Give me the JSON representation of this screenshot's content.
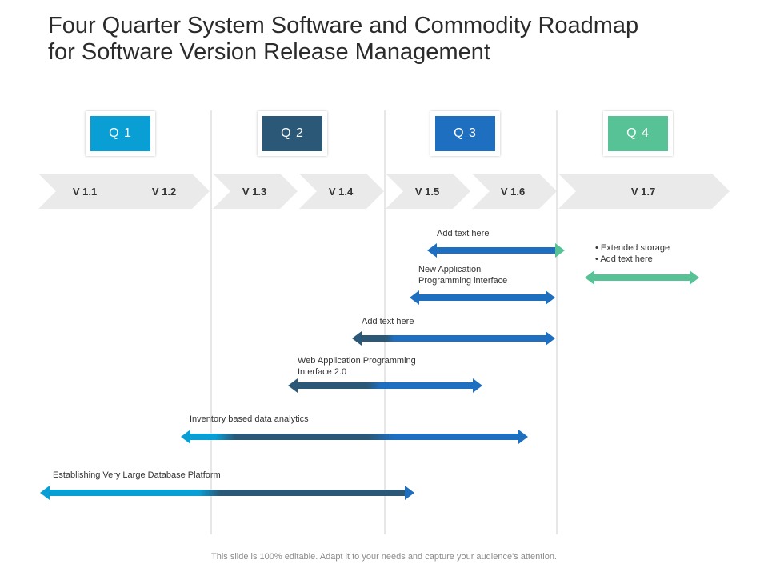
{
  "title": {
    "line1": "Four Quarter System Software and Commodity Roadmap",
    "line2": "for Software Version Release Management"
  },
  "quarters": [
    {
      "label": "Q 1",
      "color": "#0a9fd4"
    },
    {
      "label": "Q 2",
      "color": "#2b5876"
    },
    {
      "label": "Q 3",
      "color": "#1e6fc0"
    },
    {
      "label": "Q 4",
      "color": "#57c295"
    }
  ],
  "versions": [
    "V 1.1",
    "V 1.2",
    "V 1.3",
    "V 1.4",
    "V 1.5",
    "V 1.6",
    "V 1.7"
  ],
  "bars": [
    {
      "label": "Add text here"
    },
    {
      "label": "New Application Programming interface"
    },
    {
      "label": "Add text here"
    },
    {
      "label": "Web Application Programming Interface 2.0"
    },
    {
      "label": "Inventory  based data analytics"
    },
    {
      "label": "Establishing Very Large Database Platform"
    }
  ],
  "q4_bullets": [
    "Extended storage",
    "Add text here"
  ],
  "footer": "This slide is 100% editable. Adapt it to your needs and capture your audience's attention.",
  "colors": {
    "chevron": "#eaeaea",
    "divider": "#cfcfcf",
    "q1": "#0a9fd4",
    "q2": "#2b5876",
    "q3": "#1e6fc0",
    "q4": "#57c295"
  }
}
